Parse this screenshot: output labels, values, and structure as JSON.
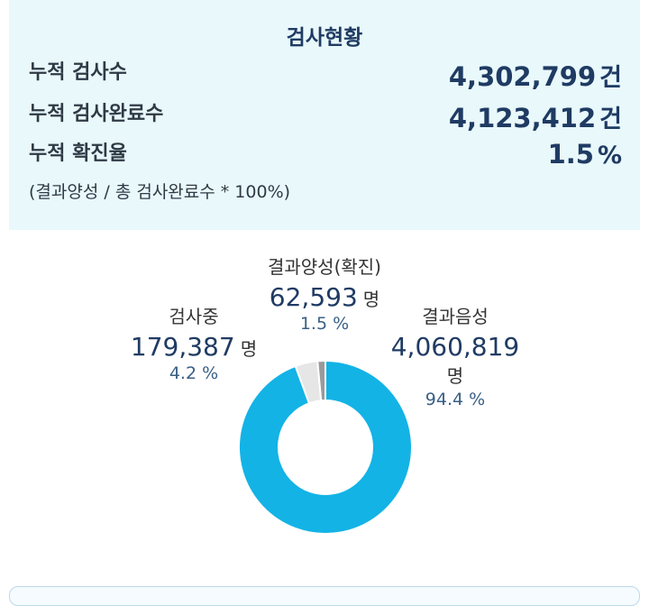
{
  "summary": {
    "title": "검사현황",
    "rows": [
      {
        "label": "누적 검사수",
        "value": "4,302,799",
        "unit": "건"
      },
      {
        "label": "누적 검사완료수",
        "value": "4,123,412",
        "unit": "건"
      },
      {
        "label": "누적 확진율",
        "value": "1.5",
        "unit": "%"
      }
    ],
    "formula": "(결과양성 / 총 검사완료수 * 100%)"
  },
  "chart_data": {
    "type": "pie",
    "style": "donut",
    "categories": [
      "결과음성",
      "검사중",
      "결과양성(확진)"
    ],
    "values": [
      4060819,
      179387,
      62593
    ],
    "percents": [
      94.4,
      4.2,
      1.5
    ],
    "count_labels": [
      "4,060,819",
      "179,387",
      "62,593"
    ],
    "unit": "명",
    "pct_labels": [
      "94.4 %",
      "4.2 %",
      "1.5 %"
    ],
    "colors": [
      "#13b3e6",
      "#e6e6e6",
      "#9a9a9a"
    ]
  }
}
